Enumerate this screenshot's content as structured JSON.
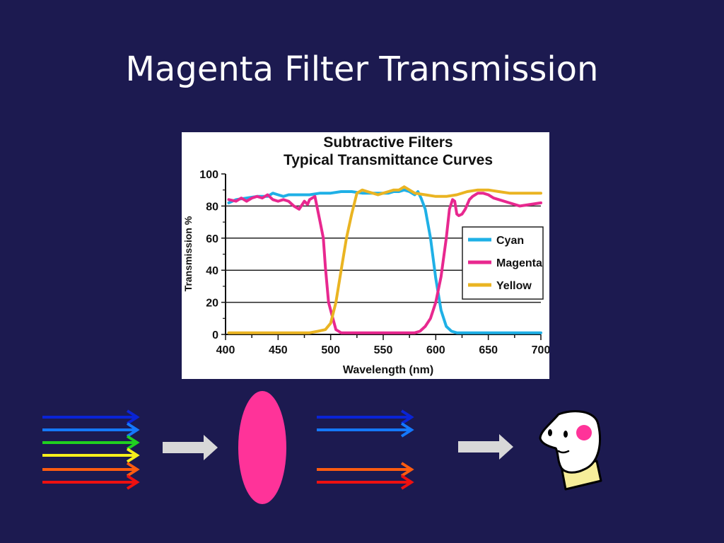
{
  "slide": {
    "title": "Magenta Filter Transmission",
    "background": "#1c1a50"
  },
  "chart_data": {
    "type": "line",
    "title": "Subtractive Filters",
    "subtitle": "Typical Transmittance Curves",
    "xlabel": "Wavelength (nm)",
    "ylabel": "Transmission %",
    "xlim": [
      400,
      700
    ],
    "ylim": [
      0,
      100
    ],
    "xticks": [
      400,
      450,
      500,
      550,
      600,
      650,
      700
    ],
    "xtick_labels": [
      "400",
      "450",
      "500",
      "550",
      "600",
      "650",
      "700"
    ],
    "yticks": [
      0,
      20,
      40,
      60,
      80,
      100
    ],
    "ytick_labels": [
      "0",
      "20",
      "40",
      "60",
      "80",
      "100"
    ],
    "grid": true,
    "legend_position": "right",
    "series": [
      {
        "name": "Cyan",
        "color": "#1fb0e6",
        "x": [
          403,
          410,
          420,
          430,
          440,
          445,
          450,
          455,
          460,
          470,
          480,
          490,
          500,
          510,
          520,
          530,
          540,
          550,
          555,
          560,
          565,
          570,
          575,
          580,
          583,
          586,
          590,
          595,
          600,
          605,
          610,
          615,
          620,
          630,
          650,
          670,
          700
        ],
        "y": [
          82,
          84,
          85,
          86,
          86,
          88,
          87,
          86,
          87,
          87,
          87,
          88,
          88,
          89,
          89,
          88,
          88,
          88,
          88,
          89,
          89,
          90,
          89,
          87,
          89,
          85,
          78,
          60,
          35,
          15,
          5,
          2,
          1,
          1,
          1,
          1,
          1
        ]
      },
      {
        "name": "Magenta",
        "color": "#e8288f",
        "x": [
          403,
          410,
          415,
          420,
          425,
          430,
          435,
          440,
          445,
          450,
          455,
          460,
          465,
          470,
          475,
          478,
          480,
          485,
          490,
          493,
          495,
          498,
          500,
          505,
          510,
          520,
          550,
          580,
          585,
          590,
          595,
          600,
          605,
          610,
          613,
          616,
          618,
          620,
          622,
          625,
          628,
          632,
          635,
          640,
          645,
          650,
          655,
          660,
          670,
          680,
          690,
          700
        ],
        "y": [
          84,
          83,
          85,
          83,
          85,
          86,
          85,
          87,
          84,
          83,
          84,
          83,
          80,
          78,
          83,
          81,
          84,
          86,
          70,
          60,
          42,
          20,
          15,
          3,
          1,
          1,
          1,
          1,
          2,
          5,
          10,
          20,
          36,
          60,
          78,
          84,
          83,
          75,
          74,
          75,
          78,
          84,
          86,
          88,
          88,
          87,
          85,
          84,
          82,
          80,
          81,
          82
        ]
      },
      {
        "name": "Yellow",
        "color": "#eab422",
        "x": [
          403,
          420,
          450,
          480,
          488,
          495,
          500,
          505,
          510,
          515,
          520,
          525,
          530,
          535,
          540,
          545,
          550,
          555,
          560,
          565,
          570,
          575,
          580,
          590,
          600,
          610,
          620,
          630,
          640,
          650,
          660,
          670,
          680,
          690,
          700
        ],
        "y": [
          1,
          1,
          1,
          1,
          2,
          3,
          7,
          20,
          40,
          60,
          75,
          88,
          90,
          89,
          88,
          87,
          88,
          89,
          90,
          90,
          92,
          90,
          88,
          87,
          86,
          86,
          87,
          89,
          90,
          90,
          89,
          88,
          88,
          88,
          88
        ]
      }
    ]
  },
  "diagram": {
    "incoming_colors": [
      "#0a24d6",
      "#1478ff",
      "#20d020",
      "#f6ee1c",
      "#ff5c10",
      "#ee1010"
    ],
    "outgoing_colors": [
      "#0a24d6",
      "#1478ff",
      "#ff5c10",
      "#ee1010"
    ],
    "filter_color": "#ff3399",
    "arrow_color": "#d8d8d8",
    "face_cheek_color": "#ff3399"
  }
}
